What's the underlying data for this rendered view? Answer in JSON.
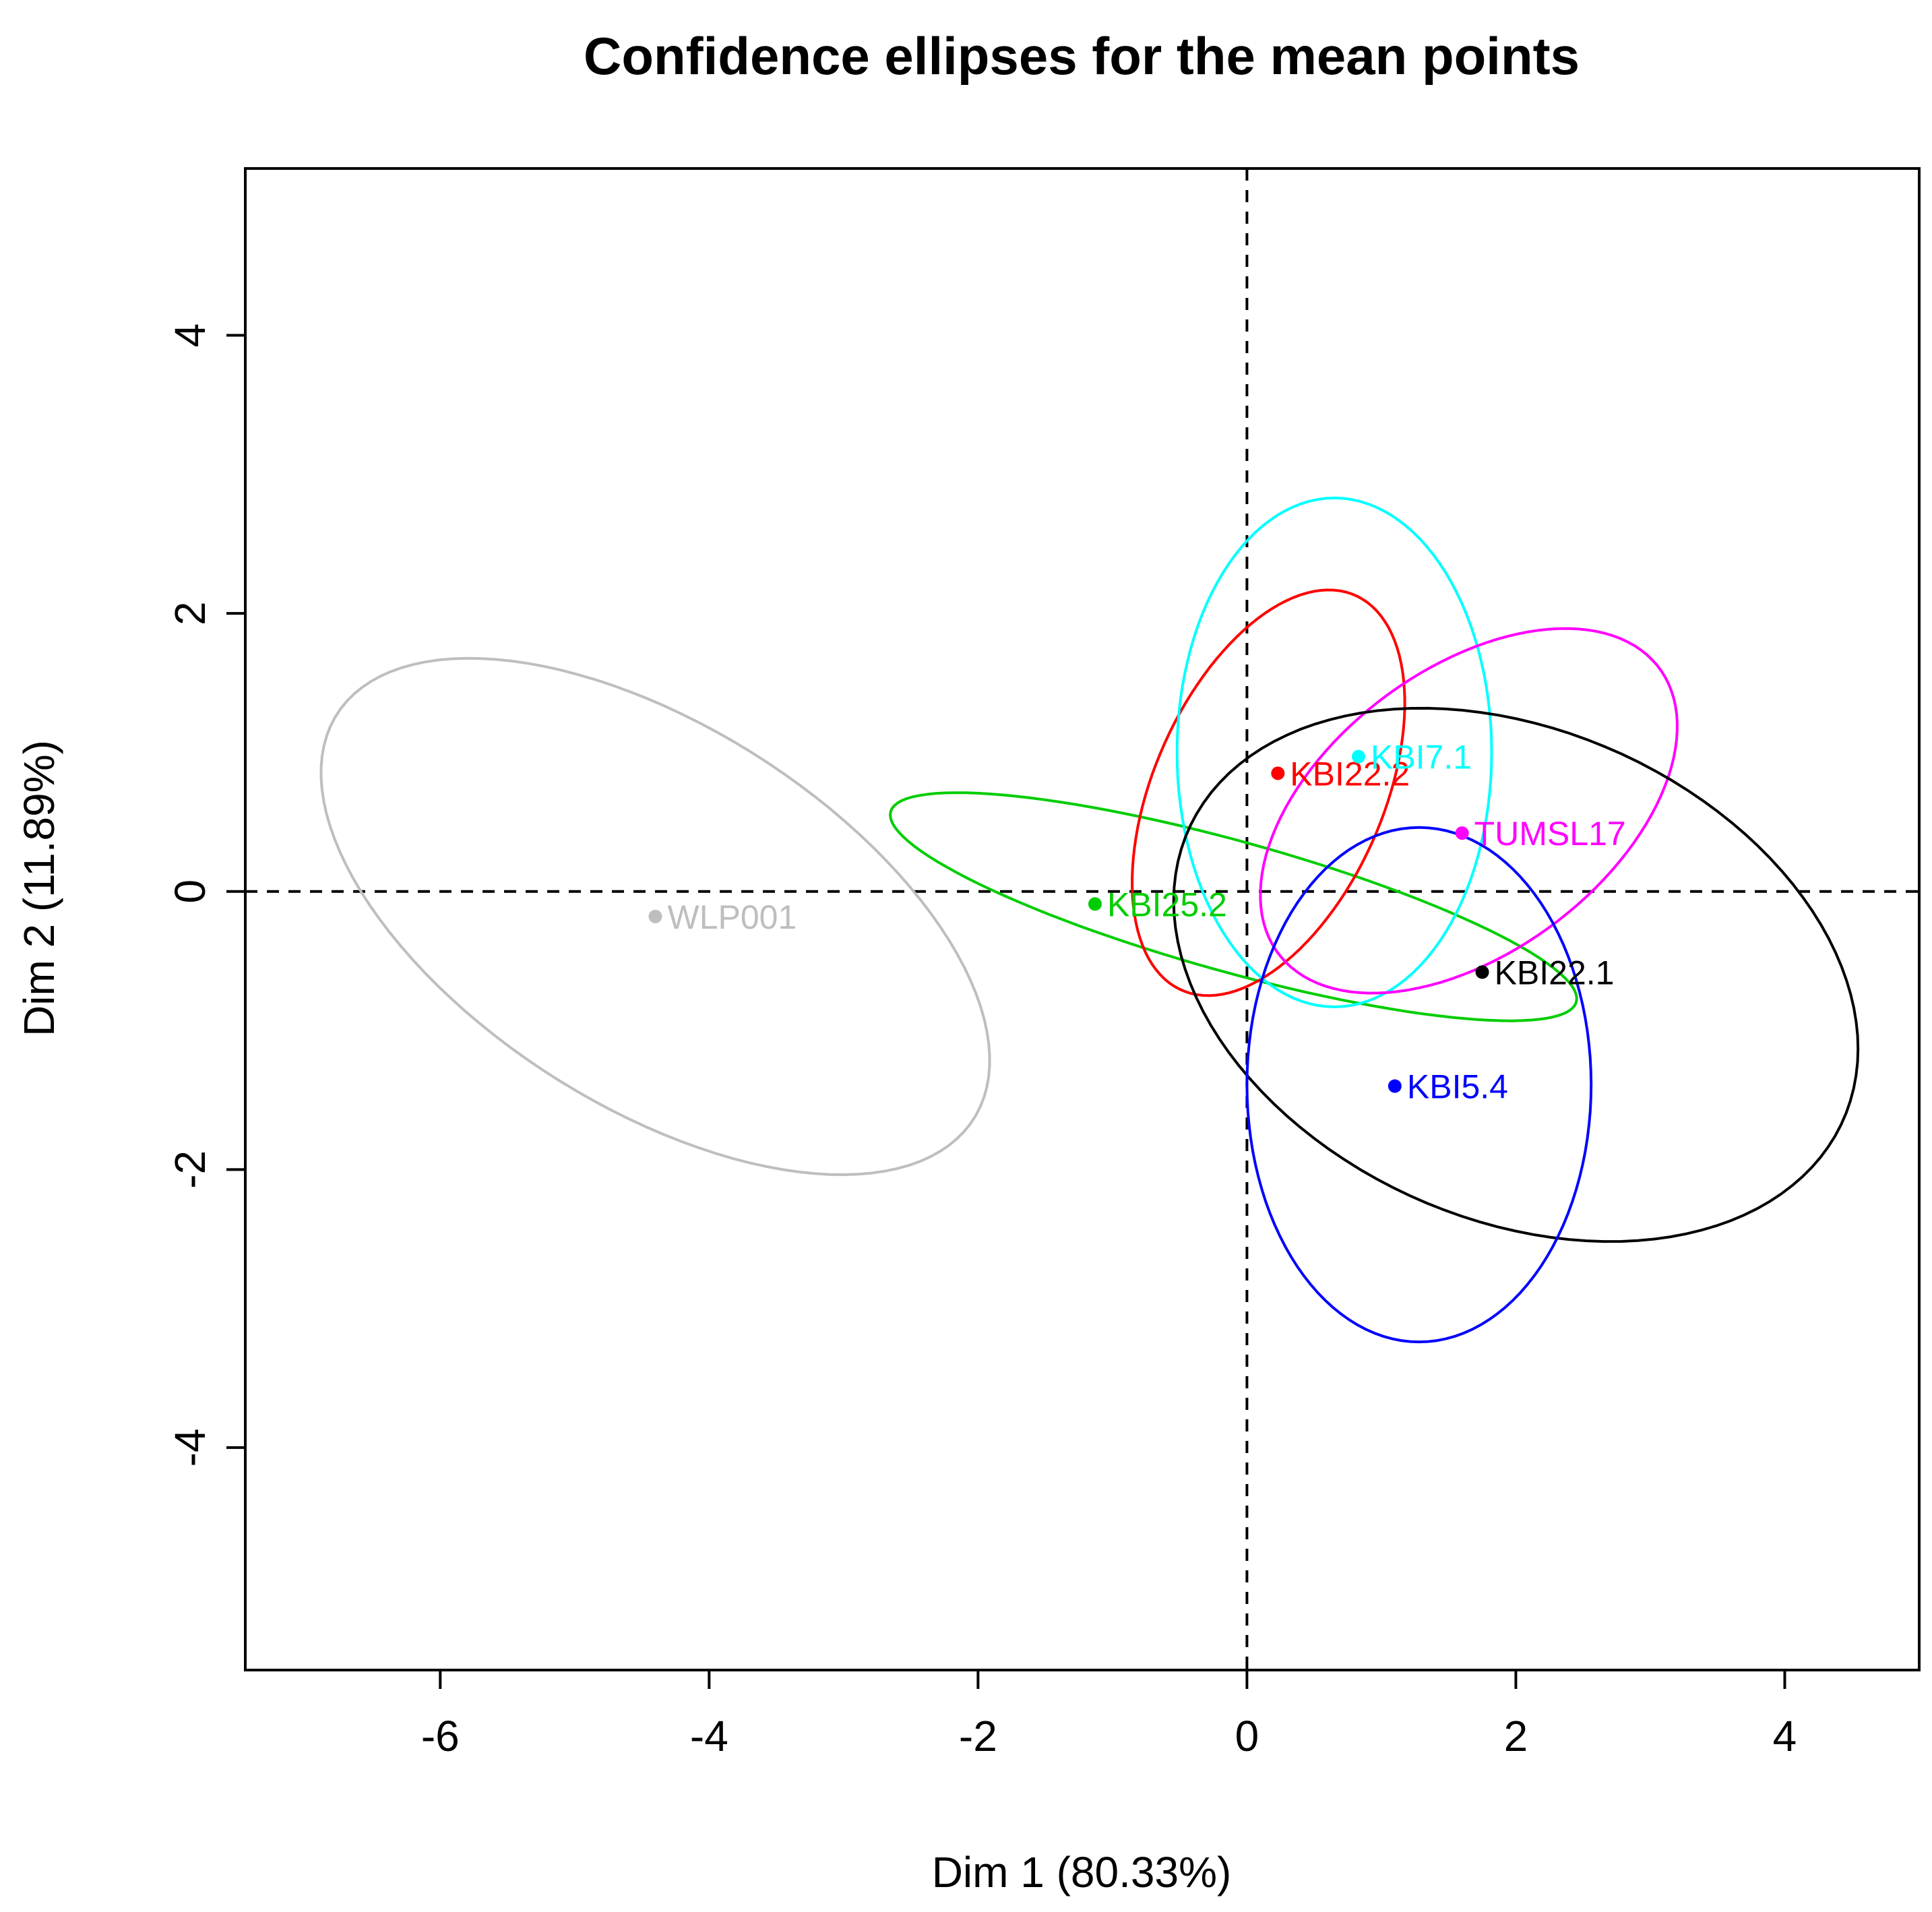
{
  "chart_data": {
    "type": "scatter",
    "title": "Confidence ellipses for the mean points",
    "xlabel": "Dim 1 (80.33%)",
    "ylabel": "Dim 2 (11.89%)",
    "xlim": [
      -7.45,
      5.0
    ],
    "ylim": [
      -5.6,
      5.2
    ],
    "xticks": [
      -6,
      -4,
      -2,
      0,
      2,
      4
    ],
    "yticks": [
      -4,
      -2,
      0,
      2,
      4
    ],
    "reference_lines": {
      "x": 0,
      "y": 0,
      "style": "dashed"
    },
    "series": [
      {
        "name": "WLP001",
        "color": "#bebebe",
        "point": [
          -4.4,
          -0.18
        ],
        "ellipse": {
          "center": [
            -4.4,
            -0.18
          ],
          "angle_deg": -31,
          "semi_axes": [
            2.78,
            1.38
          ]
        }
      },
      {
        "name": "KBI25.2",
        "color": "#00cd00",
        "point": [
          -1.13,
          -0.09
        ],
        "ellipse": {
          "center": [
            -0.1,
            -0.11
          ],
          "angle_deg": -15,
          "semi_axes": [
            2.64,
            0.47
          ]
        }
      },
      {
        "name": "KBI22.2",
        "color": "#ff0000",
        "point": [
          0.23,
          0.85
        ],
        "ellipse": {
          "center": [
            0.16,
            0.71
          ],
          "angle_deg": 65,
          "semi_axes": [
            1.56,
            0.85
          ]
        }
      },
      {
        "name": "KBI7.1",
        "color": "#00ffff",
        "point": [
          0.83,
          0.97
        ],
        "ellipse": {
          "center": [
            0.65,
            1.0
          ],
          "angle_deg": 0,
          "semi_axes": [
            1.17,
            1.83
          ]
        }
      },
      {
        "name": "TUMSL17",
        "color": "#ff00ff",
        "point": [
          1.6,
          0.42
        ],
        "ellipse": {
          "center": [
            1.65,
            0.58
          ],
          "angle_deg": 35,
          "semi_axes": [
            1.75,
            1.03
          ]
        }
      },
      {
        "name": "KBI22.1",
        "color": "#000000",
        "point": [
          1.75,
          -0.58
        ],
        "ellipse": {
          "center": [
            2.0,
            -0.6
          ],
          "angle_deg": -22,
          "semi_axes": [
            2.65,
            1.77
          ]
        }
      },
      {
        "name": "KBI5.4",
        "color": "#0000ff",
        "point": [
          1.1,
          -1.4
        ],
        "ellipse": {
          "center": [
            1.28,
            -1.39
          ],
          "angle_deg": 0,
          "semi_axes": [
            1.28,
            1.85
          ]
        }
      }
    ]
  }
}
